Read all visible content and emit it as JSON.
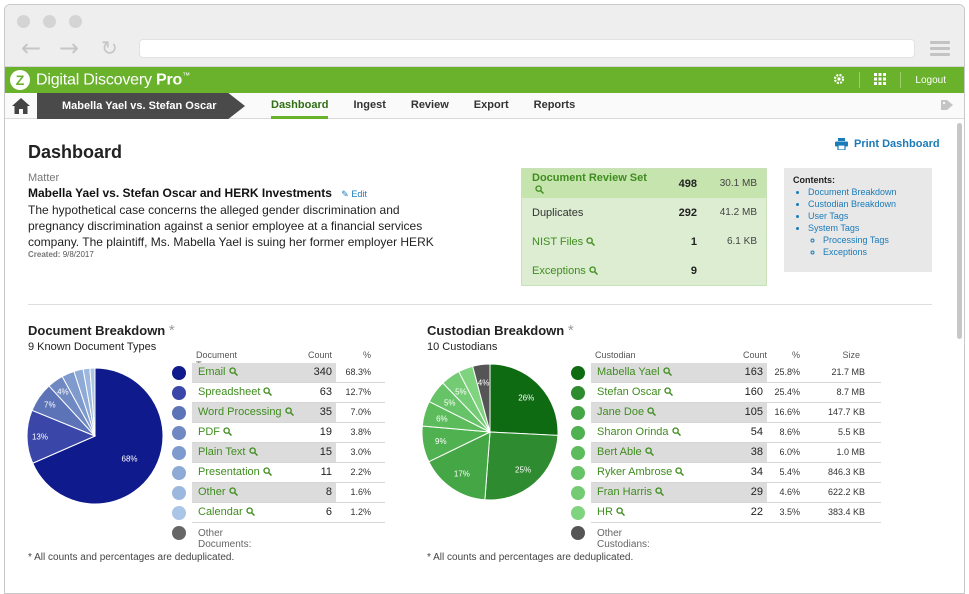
{
  "app": {
    "name": "Digital Discovery",
    "name_bold": "Pro",
    "trademark": "™",
    "logo_letter": "Z",
    "logout_label": "Logout"
  },
  "breadcrumb": {
    "matter_label": "Mabella Yael vs. Stefan Oscar and..."
  },
  "tabs": [
    {
      "label": "Dashboard",
      "active": true
    },
    {
      "label": "Ingest",
      "active": false
    },
    {
      "label": "Review",
      "active": false
    },
    {
      "label": "Export",
      "active": false
    },
    {
      "label": "Reports",
      "active": false
    }
  ],
  "dashboard": {
    "title": "Dashboard",
    "print_label": "Print Dashboard",
    "matter_label": "Matter",
    "matter_name": "Mabella Yael vs. Stefan Oscar and HERK Investments",
    "edit_label": "Edit",
    "description": "The hypothetical case concerns the alleged gender discrimination and pregnancy discrimination against a senior employee at a financial services company. The plaintiff, Ms. Mabella Yael is suing her former employer HERK Investments, Inc for wrongful termination and gender discrimination in the workplace after taking maternity",
    "created_label": "Created:",
    "created_date": "9/8/2017"
  },
  "stats": [
    {
      "name": "Document Review Set",
      "count": "498",
      "size": "30.1 MB",
      "link": true,
      "highlight": true
    },
    {
      "name": "Duplicates",
      "count": "292",
      "size": "41.2 MB",
      "link": false,
      "highlight": false
    },
    {
      "name": "NIST Files",
      "count": "1",
      "size": "6.1 KB",
      "link": true,
      "highlight": false
    },
    {
      "name": "Exceptions",
      "count": "9",
      "size": "",
      "link": true,
      "highlight": false
    }
  ],
  "contents": {
    "header": "Contents:",
    "items": [
      "Document Breakdown",
      "Custodian Breakdown",
      "User Tags",
      "System Tags"
    ],
    "subitems": [
      "Processing Tags",
      "Exceptions"
    ]
  },
  "document_breakdown": {
    "title": "Document Breakdown",
    "subtitle": "9 Known Document Types",
    "col_type": "Document Type",
    "col_count": "Count",
    "col_pct": "%",
    "rows": [
      {
        "name": "Email",
        "count": "340",
        "pct": "68.3%",
        "color": "#0f1a8c"
      },
      {
        "name": "Spreadsheet",
        "count": "63",
        "pct": "12.7%",
        "color": "#3a47a8"
      },
      {
        "name": "Word Processing",
        "count": "35",
        "pct": "7.0%",
        "color": "#5d73b8"
      },
      {
        "name": "PDF",
        "count": "19",
        "pct": "3.8%",
        "color": "#7089c3"
      },
      {
        "name": "Plain Text",
        "count": "15",
        "pct": "3.0%",
        "color": "#7f9acd"
      },
      {
        "name": "Presentation",
        "count": "11",
        "pct": "2.2%",
        "color": "#8eaad6"
      },
      {
        "name": "Other",
        "count": "8",
        "pct": "1.6%",
        "color": "#9db8de"
      },
      {
        "name": "Calendar",
        "count": "6",
        "pct": "1.2%",
        "color": "#abc5e6"
      }
    ],
    "other_label": "Other Documents:",
    "other_color": "#666666",
    "note": "* All counts and percentages are deduplicated."
  },
  "custodian_breakdown": {
    "title": "Custodian Breakdown",
    "subtitle": "10 Custodians",
    "col_name": "Custodian",
    "col_count": "Count",
    "col_pct": "%",
    "col_size": "Size",
    "rows": [
      {
        "name": "Mabella Yael",
        "count": "163",
        "pct": "25.8%",
        "size": "21.7 MB",
        "color": "#0e6b12"
      },
      {
        "name": "Stefan Oscar",
        "count": "160",
        "pct": "25.4%",
        "size": "8.7 MB",
        "color": "#2e8b30"
      },
      {
        "name": "Jane Doe",
        "count": "105",
        "pct": "16.6%",
        "size": "147.7 KB",
        "color": "#44a645"
      },
      {
        "name": "Sharon Orinda",
        "count": "54",
        "pct": "8.6%",
        "size": "5.5 KB",
        "color": "#4fb150"
      },
      {
        "name": "Bert Able",
        "count": "38",
        "pct": "6.0%",
        "size": "1.0 MB",
        "color": "#5cbc5c"
      },
      {
        "name": "Ryker Ambrose",
        "count": "34",
        "pct": "5.4%",
        "size": "846.3 KB",
        "color": "#67c367"
      },
      {
        "name": "Fran Harris",
        "count": "29",
        "pct": "4.6%",
        "size": "622.2 KB",
        "color": "#73cb73"
      },
      {
        "name": "HR",
        "count": "22",
        "pct": "3.5%",
        "size": "383.4 KB",
        "color": "#80d480"
      }
    ],
    "other_label": "Other Custodians:",
    "other_color": "#555555",
    "note": "* All counts and percentages are deduplicated."
  },
  "chart_data": [
    {
      "type": "pie",
      "title": "Document Breakdown",
      "categories": [
        "Email",
        "Spreadsheet",
        "Word Processing",
        "PDF",
        "Plain Text",
        "Presentation",
        "Other",
        "Calendar"
      ],
      "values": [
        68.3,
        12.7,
        7.0,
        3.8,
        3.0,
        2.2,
        1.6,
        1.2
      ],
      "slice_labels": [
        "68%",
        "13%",
        "7%",
        "4%",
        "",
        "",
        "",
        ""
      ],
      "colors": [
        "#0f1a8c",
        "#3a47a8",
        "#5d73b8",
        "#7089c3",
        "#7f9acd",
        "#8eaad6",
        "#9db8de",
        "#abc5e6"
      ]
    },
    {
      "type": "pie",
      "title": "Custodian Breakdown",
      "categories": [
        "Mabella Yael",
        "Stefan Oscar",
        "Jane Doe",
        "Sharon Orinda",
        "Bert Able",
        "Ryker Ambrose",
        "Fran Harris",
        "HR",
        "Other Custodians"
      ],
      "values": [
        25.8,
        25.4,
        16.6,
        8.6,
        6.0,
        5.4,
        4.6,
        3.5,
        4.1
      ],
      "slice_labels": [
        "26%",
        "25%",
        "17%",
        "9%",
        "6%",
        "5%",
        "5%",
        "",
        "4%"
      ],
      "colors": [
        "#0e6b12",
        "#2e8b30",
        "#44a645",
        "#4fb150",
        "#5cbc5c",
        "#67c367",
        "#73cb73",
        "#80d480",
        "#555555"
      ]
    }
  ]
}
